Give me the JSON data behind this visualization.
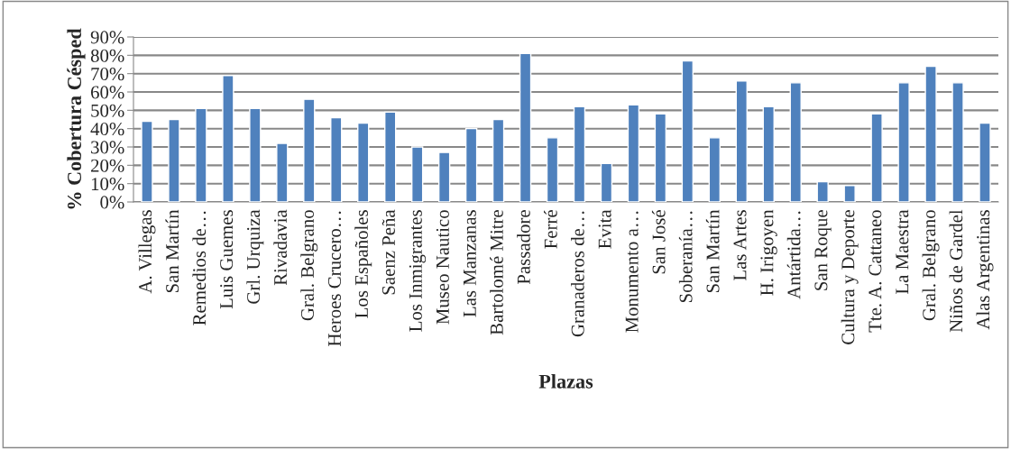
{
  "chart_data": {
    "type": "bar",
    "xlabel": "Plazas",
    "ylabel": "% Cobertura Césped",
    "categories": [
      "A. Villegas",
      "San Martín",
      "Remedios de…",
      "Luis Guemes",
      "Grl. Urquiza",
      "Rivadavia",
      "Gral. Belgrano",
      "Heroes Crucero…",
      "Los Españoles",
      "Saenz Peña",
      "Los Inmigrantes",
      "Museo Nautico",
      "Las Manzanas",
      "Bartolomé Mitre",
      "Passadore",
      "Ferré",
      "Granaderos de…",
      "Evita",
      "Monumento a…",
      "San José",
      "Soberanía…",
      "San Martín",
      "Las Artes",
      "H. Irigoyen",
      "Antártida…",
      "San Roque",
      "Cultura y Deporte",
      "Tte. A. Cattaneo",
      "La Maestra",
      "Gral. Belgrano",
      "Niños de Gardel",
      "Alas Argentinas"
    ],
    "values": [
      44,
      45,
      51,
      69,
      51,
      32,
      56,
      46,
      43,
      49,
      30,
      27,
      40,
      45,
      81,
      35,
      52,
      21,
      53,
      48,
      77,
      35,
      66,
      52,
      65,
      11,
      9,
      48,
      65,
      74,
      65,
      43
    ],
    "color": "#4f81bd",
    "ylim": [
      0,
      90
    ],
    "yticks": [
      {
        "value": 0,
        "label": "0%"
      },
      {
        "value": 10,
        "label": "10%"
      },
      {
        "value": 20,
        "label": "20%"
      },
      {
        "value": 30,
        "label": "30%"
      },
      {
        "value": 40,
        "label": "40%"
      },
      {
        "value": 50,
        "label": "50%"
      },
      {
        "value": 60,
        "label": "60%"
      },
      {
        "value": 70,
        "label": "70%"
      },
      {
        "value": 80,
        "label": "80%"
      },
      {
        "value": 90,
        "label": "90%"
      }
    ],
    "grid": "y",
    "legend": false
  }
}
